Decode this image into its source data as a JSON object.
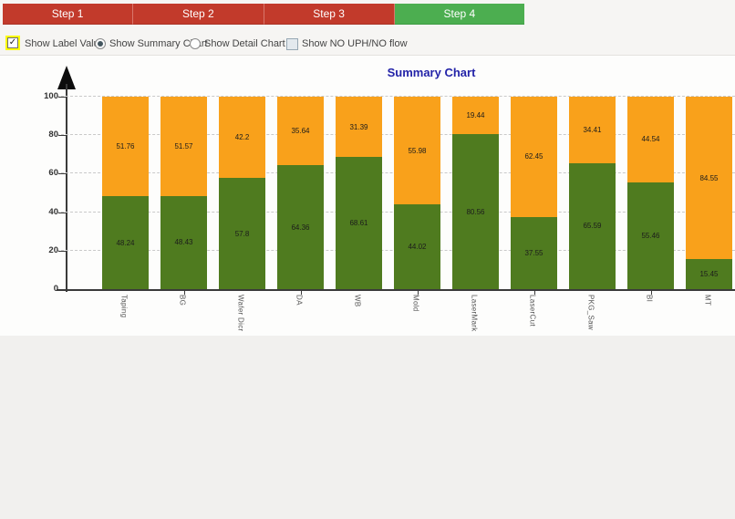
{
  "tabs": [
    {
      "label": "Step 1",
      "state": "inactive"
    },
    {
      "label": "Step 2",
      "state": "inactive"
    },
    {
      "label": "Step 3",
      "state": "inactive"
    },
    {
      "label": "Step 4",
      "state": "active"
    }
  ],
  "controls": {
    "show_label_value": {
      "label": "Show Label Value",
      "checked": true,
      "highlighted": true,
      "check_glyph": "✓"
    },
    "chart_mode": [
      {
        "label": "Show Summary Chart",
        "selected": true
      },
      {
        "label": "Show Detail Chart",
        "selected": false
      }
    ],
    "show_no_uph_no_flow": {
      "label": "Show NO UPH/NO flow",
      "checked": false
    }
  },
  "chart_data": {
    "type": "bar",
    "stacked": true,
    "title": "Summary Chart",
    "categories": [
      "Taping",
      "BG",
      "Wafer Dicr",
      "DA",
      "WB",
      "Mold",
      "LaserMark",
      "LaserCut",
      "PKG_Saw",
      "BI",
      "MT"
    ],
    "series": [
      {
        "name": "bottom-green",
        "color": "#4f7b1f",
        "values": [
          48.24,
          48.43,
          57.8,
          64.36,
          68.61,
          44.02,
          80.56,
          37.55,
          65.59,
          55.46,
          15.45
        ]
      },
      {
        "name": "top-orange",
        "color": "#f9a11b",
        "values": [
          51.76,
          51.57,
          42.2,
          35.64,
          31.39,
          55.98,
          19.44,
          62.45,
          34.41,
          44.54,
          84.55
        ]
      }
    ],
    "ylim": [
      0,
      100
    ],
    "yticks": [
      0,
      20,
      40,
      60,
      80,
      100
    ],
    "xlabel": "",
    "ylabel": "",
    "grid": "horizontal-dashed",
    "legend": "none",
    "value_labels": true,
    "title_color": "#2323a8"
  },
  "colors": {
    "tab_inactive": "#c23a2b",
    "tab_active": "#4cae50",
    "bar_green": "#4f7b1f",
    "bar_orange": "#f9a11b",
    "highlight_yellow": "#ffff00",
    "axis": "#3a3a3a"
  }
}
